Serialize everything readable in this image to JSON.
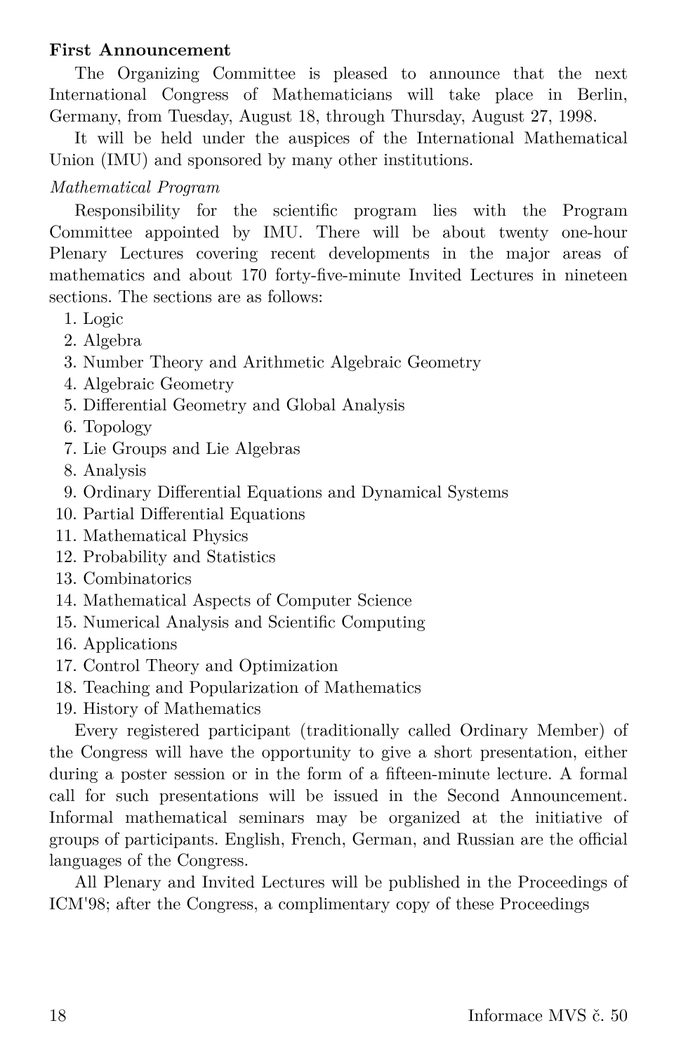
{
  "heading": "First Announcement",
  "para1": "The Organizing Committee is pleased to announce that the next International Congress of Mathematicians will take place in Berlin, Germany, from Tuesday, August 18, through Thursday, August 27, 1998.",
  "para2": "It will be held under the auspices of the International Mathematical Union (IMU) and sponsored by many other institutions.",
  "subheading": "Mathematical Program",
  "para3": "Responsibility for the scientific program lies with the Program Committee appointed by IMU. There will be about twenty one-hour Plenary Lectures covering recent developments in the major areas of mathematics and about 170 forty-five-minute Invited Lectures in nineteen sections. The sections are as follows:",
  "sections": [
    "Logic",
    "Algebra",
    "Number Theory and Arithmetic Algebraic Geometry",
    "Algebraic Geometry",
    "Differential Geometry and Global Analysis",
    "Topology",
    "Lie Groups and Lie Algebras",
    "Analysis",
    "Ordinary Differential Equations and Dynamical Systems",
    "Partial Differential Equations",
    "Mathematical Physics",
    "Probability and Statistics",
    "Combinatorics",
    "Mathematical Aspects of Computer Science",
    "Numerical Analysis and Scientific Computing",
    "Applications",
    "Control Theory and Optimization",
    "Teaching and Popularization of Mathematics",
    "History of Mathematics"
  ],
  "para4": "Every registered participant (traditionally called Ordinary Member) of the Congress will have the opportunity to give a short presentation, either during a poster session or in the form of a fifteen-minute lecture. A formal call for such presentations will be issued in the Second Announcement. Informal mathematical seminars may be organized at the initiative of groups of participants. English, French, German, and Russian are the official languages of the Congress.",
  "para5": "All Plenary and Invited Lectures will be published in the Proceedings of ICM'98; after the Congress, a complimentary copy of these Proceedings",
  "footer": {
    "page": "18",
    "journal": "Informace MVS č. 50"
  }
}
